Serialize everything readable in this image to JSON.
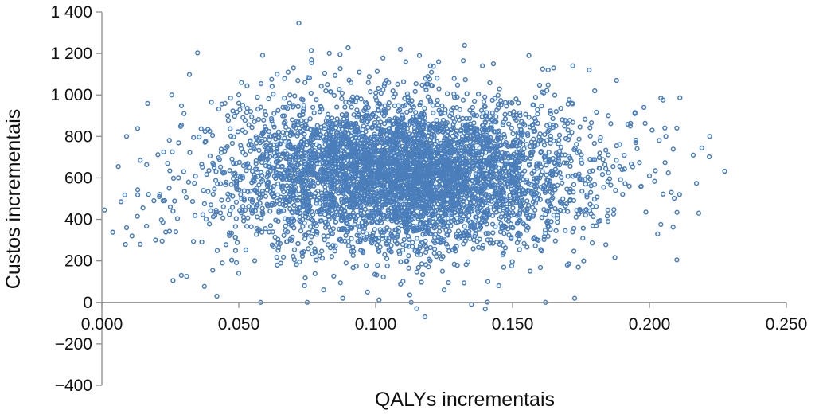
{
  "chart_data": {
    "type": "scatter",
    "title": "",
    "xlabel": "QALYs incrementais",
    "ylabel": "Custos incrementais",
    "xlim": [
      0.0,
      0.25
    ],
    "ylim": [
      -400,
      1400
    ],
    "xticks": [
      0.0,
      0.05,
      0.1,
      0.15,
      0.2,
      0.25
    ],
    "xtick_labels": [
      "0.000",
      "0.050",
      "0.100",
      "0.150",
      "0.200",
      "0.250"
    ],
    "yticks": [
      -400,
      -200,
      0,
      200,
      400,
      600,
      800,
      1000,
      1200,
      1400
    ],
    "ytick_labels": [
      "−400",
      "−200",
      "0",
      "200",
      "400",
      "600",
      "800",
      "1 000",
      "1 200",
      "1 400"
    ],
    "grid": false,
    "legend": "none",
    "marker": "hollow-circle",
    "marker_color": "#4a7ebb",
    "series": [
      {
        "center": {
          "x": 0.11,
          "y": 620
        },
        "spread": {
          "x_sd": 0.032,
          "y_sd": 180
        },
        "approximate_point_count": 5000,
        "points": [
          [
            0.001,
            445
          ],
          [
            0.006,
            655
          ],
          [
            0.007,
            485
          ],
          [
            0.009,
            800
          ],
          [
            0.009,
            360
          ],
          [
            0.011,
            320
          ],
          [
            0.013,
            415
          ],
          [
            0.014,
            685
          ],
          [
            0.014,
            280
          ],
          [
            0.015,
            455
          ],
          [
            0.019,
            490
          ],
          [
            0.021,
            510
          ],
          [
            0.022,
            295
          ],
          [
            0.024,
            670
          ],
          [
            0.025,
            460
          ],
          [
            0.026,
            440
          ],
          [
            0.026,
            105
          ],
          [
            0.027,
            340
          ],
          [
            0.028,
            600
          ],
          [
            0.029,
            130
          ],
          [
            0.029,
            855
          ],
          [
            0.03,
            910
          ],
          [
            0.031,
            125
          ],
          [
            0.04,
            965
          ],
          [
            0.042,
            30
          ],
          [
            0.044,
            190
          ],
          [
            0.046,
            900
          ],
          [
            0.047,
            985
          ],
          [
            0.05,
            960
          ],
          [
            0.05,
            140
          ],
          [
            0.051,
            1060
          ],
          [
            0.058,
            0
          ],
          [
            0.062,
            1075
          ],
          [
            0.064,
            1100
          ],
          [
            0.068,
            1110
          ],
          [
            0.07,
            1130
          ],
          [
            0.074,
            80
          ],
          [
            0.075,
            0
          ],
          [
            0.081,
            60
          ],
          [
            0.087,
            1195
          ],
          [
            0.088,
            20
          ],
          [
            0.091,
            1060
          ],
          [
            0.094,
            1110
          ],
          [
            0.097,
            50
          ],
          [
            0.104,
            1070
          ],
          [
            0.109,
            1220
          ],
          [
            0.111,
            1160
          ],
          [
            0.113,
            0
          ],
          [
            0.115,
            -30
          ],
          [
            0.116,
            1190
          ],
          [
            0.118,
            -70
          ],
          [
            0.12,
            1140
          ],
          [
            0.123,
            1160
          ],
          [
            0.125,
            60
          ],
          [
            0.132,
            1165
          ],
          [
            0.135,
            -10
          ],
          [
            0.139,
            1140
          ],
          [
            0.141,
            100
          ],
          [
            0.143,
            1150
          ],
          [
            0.145,
            80
          ],
          [
            0.156,
            1190
          ],
          [
            0.161,
            1125
          ],
          [
            0.162,
            0
          ],
          [
            0.163,
            1120
          ],
          [
            0.165,
            1130
          ],
          [
            0.17,
            180
          ],
          [
            0.172,
            1140
          ],
          [
            0.174,
            170
          ],
          [
            0.176,
            200
          ],
          [
            0.178,
            1120
          ],
          [
            0.18,
            1020
          ],
          [
            0.182,
            780
          ],
          [
            0.185,
            900
          ],
          [
            0.188,
            1070
          ],
          [
            0.19,
            640
          ],
          [
            0.193,
            850
          ],
          [
            0.195,
            770
          ],
          [
            0.197,
            560
          ],
          [
            0.198,
            940
          ],
          [
            0.2,
            610
          ],
          [
            0.201,
            830
          ],
          [
            0.203,
            330
          ],
          [
            0.205,
            975
          ],
          [
            0.206,
            800
          ],
          [
            0.208,
            530
          ],
          [
            0.21,
            840
          ],
          [
            0.211,
            520
          ],
          [
            0.216,
            710
          ],
          [
            0.218,
            430
          ],
          [
            0.222,
            800
          ]
        ]
      }
    ]
  }
}
